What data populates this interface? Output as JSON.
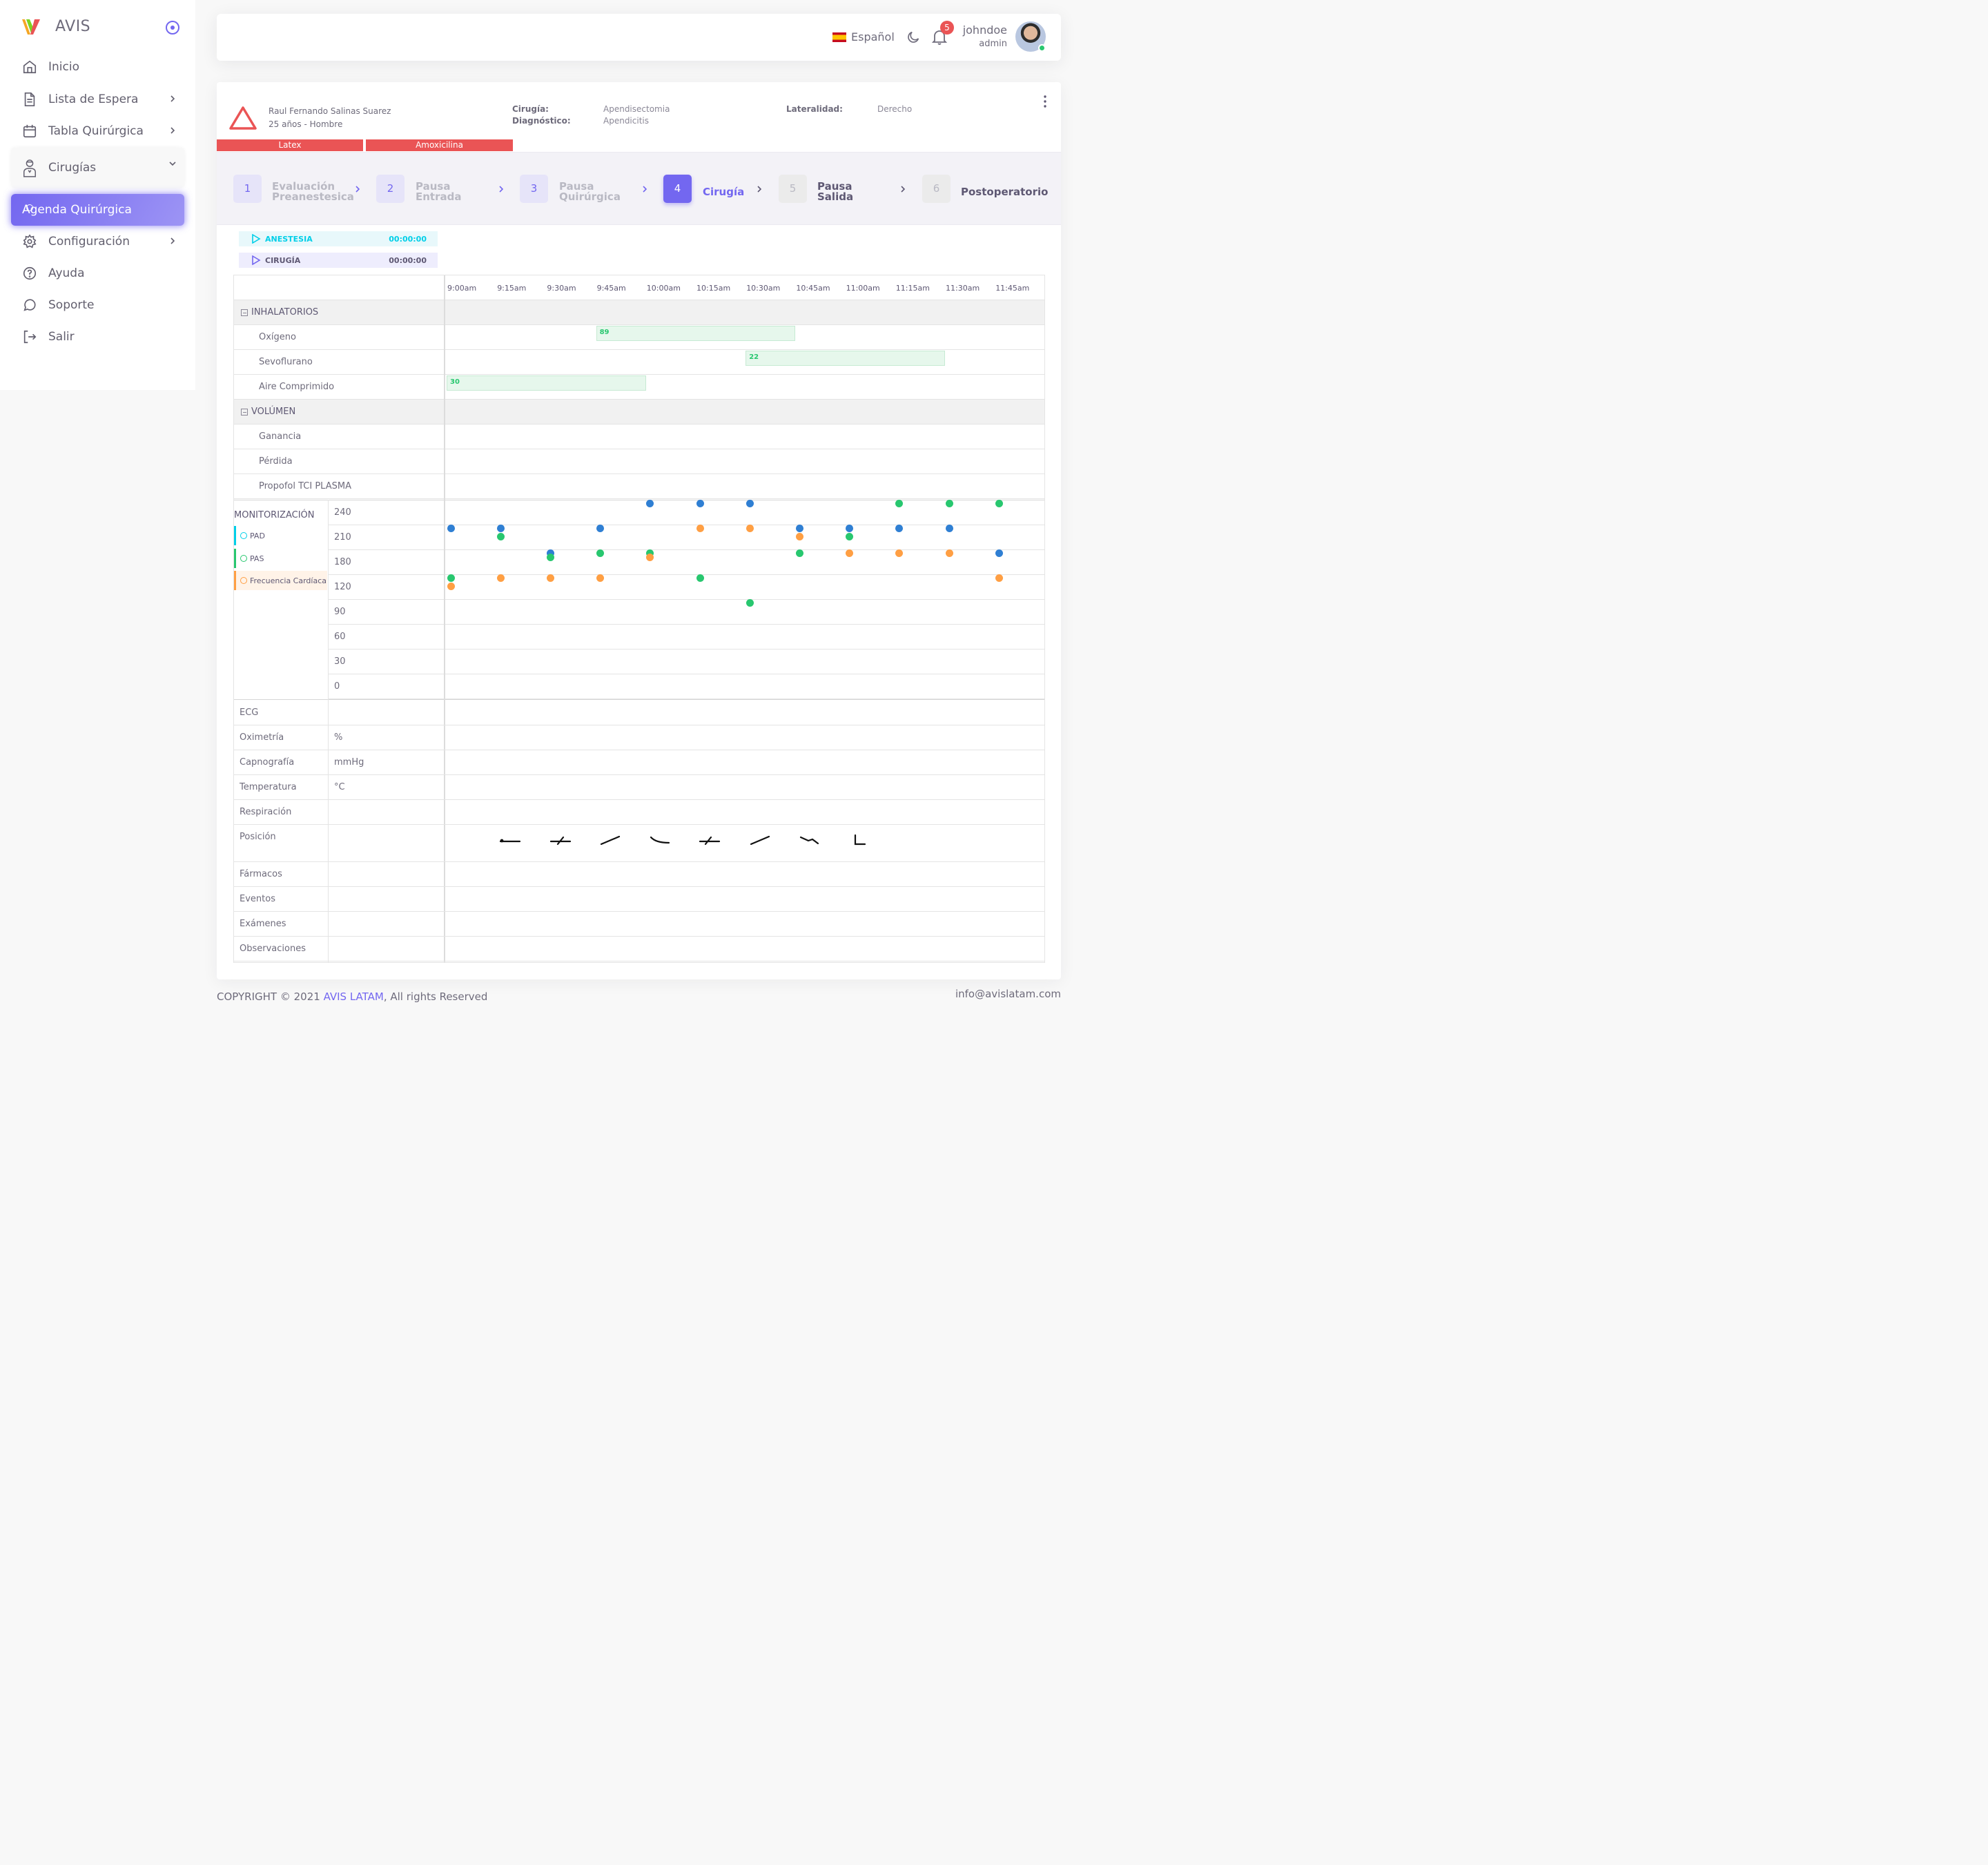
{
  "brand": {
    "name": "AVIS"
  },
  "sidebar": {
    "items": [
      {
        "label": "Inicio"
      },
      {
        "label": "Lista de Espera"
      },
      {
        "label": "Tabla Quirúrgica"
      },
      {
        "label": "Cirugías"
      },
      {
        "label": "Agenda Quirúrgica"
      },
      {
        "label": "Configuración"
      },
      {
        "label": "Ayuda"
      },
      {
        "label": "Soporte"
      },
      {
        "label": "Salir"
      }
    ]
  },
  "header": {
    "language": "Español",
    "notification_count": "5",
    "user_name": "johndoe",
    "user_role": "admin"
  },
  "patient": {
    "name": "Raul Fernando Salinas Suarez",
    "age_sex": "25 años - Hombre",
    "surgery_label": "Cirugía:",
    "surgery": "Apendisectomia",
    "diagnosis_label": "Diagnóstico:",
    "diagnosis": "Apendicitis",
    "laterality_label": "Lateralidad:",
    "laterality": "Derecho",
    "allergies": [
      "Latex",
      "Amoxicilina"
    ]
  },
  "steps": [
    {
      "num": "1",
      "line1": "Evaluación",
      "line2": "Preanestesica"
    },
    {
      "num": "2",
      "line1": "Pausa",
      "line2": "Entrada"
    },
    {
      "num": "3",
      "line1": "Pausa",
      "line2": "Quirúrgica"
    },
    {
      "num": "4",
      "line1": "Cirugía",
      "line2": ""
    },
    {
      "num": "5",
      "line1": "Pausa",
      "line2": "Salida"
    },
    {
      "num": "6",
      "line1": "Postoperatorio",
      "line2": ""
    }
  ],
  "timers": [
    {
      "label": "ANESTESIA",
      "time": "00:00:00",
      "color": "#00cfe8"
    },
    {
      "label": "CIRUGÍA",
      "time": "00:00:00",
      "color": "#5e5873"
    }
  ],
  "times": [
    "9:00am",
    "9:15am",
    "9:30am",
    "9:45am",
    "10:00am",
    "10:15am",
    "10:30am",
    "10:45am",
    "11:00am",
    "11:15am",
    "11:30am",
    "11:45am"
  ],
  "sections": {
    "inhalatorios": "INHALATORIOS",
    "volumen": "VOLÚMEN",
    "monitorizacion": "MONITORIZACIÓN"
  },
  "inhalatorios": [
    {
      "label": "Oxígeno",
      "value": "89",
      "start": "9:45am",
      "end": "10:45am"
    },
    {
      "label": "Sevoflurano",
      "value": "22",
      "start": "10:30am",
      "end": "11:30am"
    },
    {
      "label": "Aire Comprimido",
      "value": "30",
      "start": "9:00am",
      "end": "10:00am"
    }
  ],
  "volumen": [
    {
      "label": "Ganancia"
    },
    {
      "label": "Pérdida"
    },
    {
      "label": "Propofol TCI PLASMA"
    }
  ],
  "chart_data": {
    "type": "scatter",
    "x": [
      "9:00am",
      "9:15am",
      "9:30am",
      "9:45am",
      "10:00am",
      "10:15am",
      "10:30am",
      "10:45am",
      "11:00am",
      "11:15am",
      "11:30am",
      "11:45am"
    ],
    "y_ticks": [
      240,
      210,
      180,
      120,
      90,
      60,
      30,
      0
    ],
    "series": [
      {
        "name": "PAD",
        "color": "#2f7fd3",
        "values": [
          210,
          210,
          180,
          210,
          240,
          240,
          240,
          210,
          210,
          210,
          210,
          180
        ]
      },
      {
        "name": "PAS",
        "color": "#28c76f",
        "values": [
          120,
          200,
          170,
          180,
          180,
          120,
          90,
          180,
          200,
          240,
          240,
          240
        ]
      },
      {
        "name": "Frecuencia Cardíaca",
        "color": "#ff9f43",
        "values": [
          110,
          120,
          120,
          120,
          170,
          210,
          210,
          200,
          180,
          180,
          180,
          120
        ]
      }
    ]
  },
  "monitor_rows": [
    {
      "label": "ECG",
      "unit": ""
    },
    {
      "label": "Oximetría",
      "unit": "%"
    },
    {
      "label": "Capnografía",
      "unit": "mmHg"
    },
    {
      "label": "Temperatura",
      "unit": "°C"
    },
    {
      "label": "Respiración",
      "unit": ""
    },
    {
      "label": "Posición",
      "unit": ""
    },
    {
      "label": "Fármacos",
      "unit": ""
    },
    {
      "label": "Eventos",
      "unit": ""
    },
    {
      "label": "Exámenes",
      "unit": ""
    },
    {
      "label": "Observaciones",
      "unit": ""
    }
  ],
  "footer": {
    "prefix": "COPYRIGHT © 2021 ",
    "company": "AVIS LATAM",
    "suffix": ", All rights Reserved",
    "email": "info@avislatam.com"
  }
}
